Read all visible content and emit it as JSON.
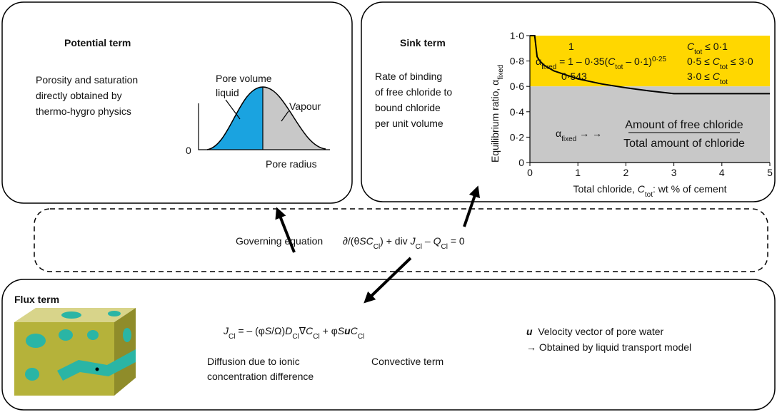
{
  "potential_term": {
    "title": "Potential term",
    "description": [
      "Porosity and saturation",
      "directly obtained by",
      "thermo-hygro physics"
    ],
    "diagram": {
      "pore_volume": "Pore volume",
      "liquid": "liquid",
      "vapour": "Vapour",
      "origin": "0",
      "pore_radius": "Pore radius"
    }
  },
  "sink_term": {
    "title": "Sink term",
    "description": [
      "Rate of binding",
      "of free chloride to",
      "bound chloride",
      "per unit volume"
    ]
  },
  "chart_data": {
    "type": "line",
    "y_label": [
      "Equilibrium ratio, α",
      "fixed"
    ],
    "x_label": [
      "Total chloride, ",
      "C",
      "tot",
      ": wt % of cement"
    ],
    "x": [
      0,
      0.1,
      0.15,
      0.2,
      0.3,
      0.5,
      1,
      1.5,
      2,
      2.5,
      3,
      5
    ],
    "series": [
      {
        "color": "#000000",
        "values": [
          1,
          1,
          0.834,
          0.803,
          0.766,
          0.722,
          0.659,
          0.619,
          0.589,
          0.564,
          0.543,
          0.543
        ]
      }
    ],
    "xlim": [
      0,
      5
    ],
    "ylim": [
      0,
      1
    ],
    "xticks": [
      0,
      1,
      2,
      3,
      4,
      5
    ],
    "yticks": [
      0,
      {
        "value": 0.2,
        "label": "0·2"
      },
      {
        "value": 0.4,
        "label": "0·4"
      },
      {
        "value": 0.6,
        "label": "0·6"
      },
      {
        "value": 0.8,
        "label": "0·8"
      },
      {
        "value": 1.0,
        "label": "1·0"
      }
    ],
    "regions": [
      {
        "color": "#ffd700",
        "from": 0.6,
        "to": 1.0
      },
      {
        "color": "#c8c8c8",
        "from": 0,
        "to": 0.6
      }
    ],
    "piecewise": [
      {
        "expr": [
          "1"
        ],
        "cond": [
          "C",
          "tot",
          " ≤ 0·1"
        ]
      },
      {
        "expr": [
          "α",
          "fixed",
          " = 1 – 0·35(",
          "C",
          "tot",
          " – 0·1)",
          "0·25"
        ],
        "cond": [
          "0·5 ≤ ",
          "C",
          "tot",
          " ≤ 3·0"
        ]
      },
      {
        "expr": [
          "0·543"
        ],
        "cond": [
          "3·0 ≤ ",
          "C",
          "tot"
        ]
      }
    ],
    "definition": {
      "lhs": [
        "α",
        "fixed",
        " → →"
      ],
      "numerator": "Amount of free chloride",
      "denominator": "Total amount of chloride"
    }
  },
  "governing": {
    "label": "Governing equation",
    "equation": [
      "∂/(θ",
      "SC",
      "Cl",
      ") + div ",
      "J",
      "Cl",
      " – ",
      "Q",
      "Cl",
      " = 0"
    ]
  },
  "flux_term": {
    "title": "Flux term",
    "equation": [
      "J",
      "Cl",
      " = – (φ",
      "S",
      "/Ω)",
      "D",
      "Cl",
      "∇",
      "C",
      "Cl",
      " + φ",
      "S",
      "u",
      "C",
      "Cl"
    ],
    "diffusion": [
      "Diffusion due to ionic",
      "concentration difference"
    ],
    "convective": "Convective term",
    "velocity": [
      "u",
      "  Velocity vector of pore water"
    ],
    "transport": "→ Obtained by liquid transport model"
  }
}
